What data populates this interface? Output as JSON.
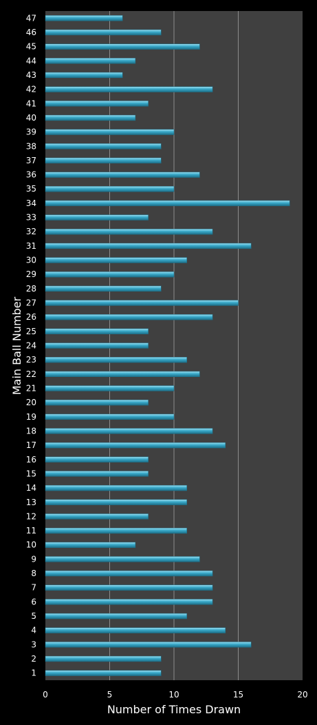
{
  "chart_data": {
    "type": "bar",
    "orientation": "horizontal",
    "title": "",
    "xlabel": "Number of Times Drawn",
    "ylabel": "Main Ball Number",
    "xlim": [
      0,
      20
    ],
    "xticks": [
      "0",
      "5",
      "10",
      "15",
      "20"
    ],
    "grid": "vertical",
    "legend": "none",
    "colors": {
      "background": "#000000",
      "plot_area": "#404040",
      "gridline": "#8c8c8c",
      "bar": "#38a8c8",
      "bar_highlight": "#9ee0f2",
      "bar_shadow": "#1d6f88",
      "text": "#ffffff"
    },
    "categories": [
      "1",
      "2",
      "3",
      "4",
      "5",
      "6",
      "7",
      "8",
      "9",
      "10",
      "11",
      "12",
      "13",
      "14",
      "15",
      "16",
      "17",
      "18",
      "19",
      "20",
      "21",
      "22",
      "23",
      "24",
      "25",
      "26",
      "27",
      "28",
      "29",
      "30",
      "31",
      "32",
      "33",
      "34",
      "35",
      "36",
      "37",
      "38",
      "39",
      "40",
      "41",
      "42",
      "43",
      "44",
      "45",
      "46",
      "47"
    ],
    "values": [
      9,
      9,
      16,
      14,
      11,
      13,
      13,
      13,
      12,
      7,
      11,
      8,
      11,
      11,
      8,
      8,
      14,
      13,
      10,
      8,
      10,
      12,
      11,
      8,
      8,
      13,
      15,
      9,
      10,
      11,
      16,
      13,
      8,
      19,
      10,
      12,
      9,
      9,
      10,
      7,
      8,
      13,
      6,
      7,
      12,
      9,
      6
    ]
  }
}
